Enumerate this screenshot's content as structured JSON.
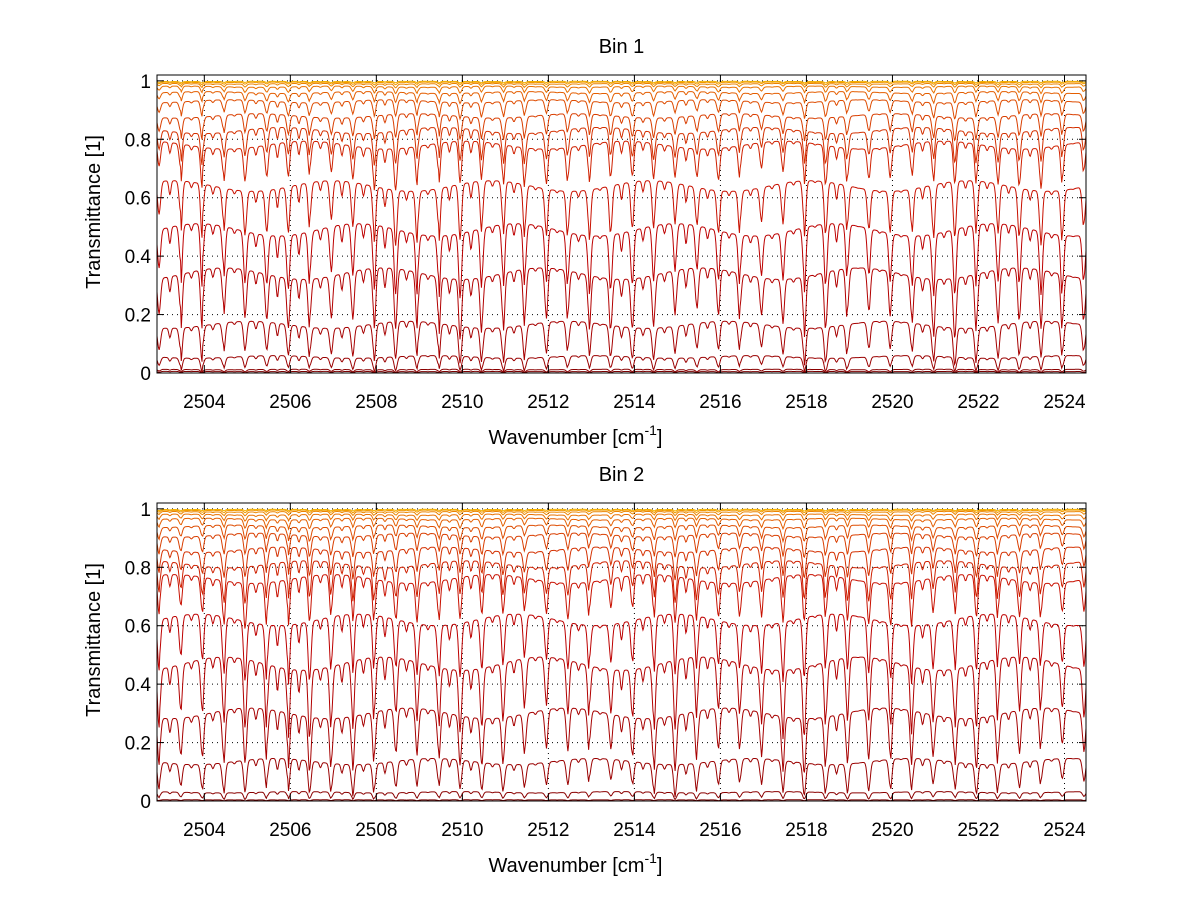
{
  "chart_data": [
    {
      "type": "line",
      "title": "Bin 1",
      "xlabel": "Wavenumber [cm",
      "xlabel_superscript": "-1",
      "xlabel_suffix": "]",
      "ylabel": "Transmittance [1]",
      "xlim": [
        2502.9,
        2524.5
      ],
      "ylim": [
        0,
        1.02
      ],
      "xticks": [
        2504,
        2506,
        2508,
        2510,
        2512,
        2514,
        2516,
        2518,
        2520,
        2522,
        2524
      ],
      "yticks": [
        0,
        0.2,
        0.4,
        0.6,
        0.8,
        1
      ],
      "ytick_labels": [
        "0",
        "0.2",
        "0.4",
        "0.6",
        "0.8",
        "1"
      ],
      "grid": true,
      "line_period_cm1": 0.5,
      "series": [
        {
          "color": "#7a0000",
          "baseline": 0.005,
          "depth": 0.003
        },
        {
          "color": "#8a0000",
          "baseline": 0.012,
          "depth": 0.006
        },
        {
          "color": "#9a0000",
          "baseline": 0.055,
          "depth": 0.03
        },
        {
          "color": "#a60000",
          "baseline": 0.165,
          "depth": 0.08
        },
        {
          "color": "#b20000",
          "baseline": 0.34,
          "depth": 0.13
        },
        {
          "color": "#bd0000",
          "baseline": 0.49,
          "depth": 0.14
        },
        {
          "color": "#c81000",
          "baseline": 0.64,
          "depth": 0.12
        },
        {
          "color": "#cf2000",
          "baseline": 0.78,
          "depth": 0.09
        },
        {
          "color": "#d43000",
          "baseline": 0.83,
          "depth": 0.07
        },
        {
          "color": "#d93e00",
          "baseline": 0.88,
          "depth": 0.05
        },
        {
          "color": "#de4c00",
          "baseline": 0.93,
          "depth": 0.035
        },
        {
          "color": "#e45e00",
          "baseline": 0.96,
          "depth": 0.022
        },
        {
          "color": "#e87000",
          "baseline": 0.98,
          "depth": 0.014
        },
        {
          "color": "#ec8500",
          "baseline": 0.99,
          "depth": 0.008
        },
        {
          "color": "#f09a00",
          "baseline": 0.995,
          "depth": 0.005
        },
        {
          "color": "#f4b000",
          "baseline": 0.998,
          "depth": 0.003
        }
      ]
    },
    {
      "type": "line",
      "title": "Bin 2",
      "xlabel": "Wavenumber [cm",
      "xlabel_superscript": "-1",
      "xlabel_suffix": "]",
      "ylabel": "Transmittance [1]",
      "xlim": [
        2502.9,
        2524.5
      ],
      "ylim": [
        0,
        1.02
      ],
      "xticks": [
        2504,
        2506,
        2508,
        2510,
        2512,
        2514,
        2516,
        2518,
        2520,
        2522,
        2524
      ],
      "yticks": [
        0,
        0.2,
        0.4,
        0.6,
        0.8,
        1
      ],
      "ytick_labels": [
        "0",
        "0.2",
        "0.4",
        "0.6",
        "0.8",
        "1"
      ],
      "grid": true,
      "line_period_cm1": 0.5,
      "series": [
        {
          "color": "#7a0000",
          "baseline": 0.004,
          "depth": 0.002
        },
        {
          "color": "#8a0000",
          "baseline": 0.03,
          "depth": 0.015
        },
        {
          "color": "#9a0000",
          "baseline": 0.135,
          "depth": 0.07
        },
        {
          "color": "#a60000",
          "baseline": 0.3,
          "depth": 0.12
        },
        {
          "color": "#b20000",
          "baseline": 0.47,
          "depth": 0.15
        },
        {
          "color": "#bd0000",
          "baseline": 0.62,
          "depth": 0.13
        },
        {
          "color": "#c81000",
          "baseline": 0.76,
          "depth": 0.1
        },
        {
          "color": "#cf2000",
          "baseline": 0.81,
          "depth": 0.08
        },
        {
          "color": "#d43000",
          "baseline": 0.86,
          "depth": 0.06
        },
        {
          "color": "#d93e00",
          "baseline": 0.91,
          "depth": 0.045
        },
        {
          "color": "#de4c00",
          "baseline": 0.94,
          "depth": 0.03
        },
        {
          "color": "#e45e00",
          "baseline": 0.965,
          "depth": 0.02
        },
        {
          "color": "#e87000",
          "baseline": 0.98,
          "depth": 0.013
        },
        {
          "color": "#ec8500",
          "baseline": 0.99,
          "depth": 0.008
        },
        {
          "color": "#f09a00",
          "baseline": 0.995,
          "depth": 0.005
        },
        {
          "color": "#f4b000",
          "baseline": 0.998,
          "depth": 0.003
        }
      ]
    }
  ]
}
